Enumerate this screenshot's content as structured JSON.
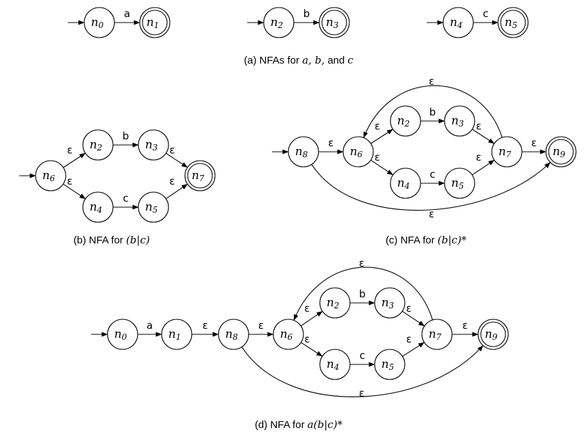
{
  "panels": [
    {
      "id": "a",
      "caption": [
        "(a) NFAs for ",
        {
          "i": "a, b,"
        },
        " and ",
        {
          "i": "c"
        }
      ]
    },
    {
      "id": "b",
      "caption": [
        "(b) NFA for ",
        {
          "i": "(b|c)"
        }
      ]
    },
    {
      "id": "c",
      "caption": [
        "(c) NFA for ",
        {
          "i": "(b|c)*"
        }
      ]
    },
    {
      "id": "d",
      "caption": [
        "(d) NFA for ",
        {
          "i": "a(b|c)*"
        }
      ]
    }
  ],
  "nodes": [
    {
      "key": "a0",
      "name": "n",
      "sub": "0",
      "accept": false
    },
    {
      "key": "a1",
      "name": "n",
      "sub": "1",
      "accept": true
    },
    {
      "key": "a2",
      "name": "n",
      "sub": "2",
      "accept": false
    },
    {
      "key": "a3",
      "name": "n",
      "sub": "3",
      "accept": true
    },
    {
      "key": "a4",
      "name": "n",
      "sub": "4",
      "accept": false
    },
    {
      "key": "a5",
      "name": "n",
      "sub": "5",
      "accept": true
    },
    {
      "key": "b6",
      "name": "n",
      "sub": "6",
      "accept": false
    },
    {
      "key": "b2",
      "name": "n",
      "sub": "2",
      "accept": false
    },
    {
      "key": "b3",
      "name": "n",
      "sub": "3",
      "accept": false
    },
    {
      "key": "b4",
      "name": "n",
      "sub": "4",
      "accept": false
    },
    {
      "key": "b5",
      "name": "n",
      "sub": "5",
      "accept": false
    },
    {
      "key": "b7",
      "name": "n",
      "sub": "7",
      "accept": true
    },
    {
      "key": "c8",
      "name": "n",
      "sub": "8",
      "accept": false
    },
    {
      "key": "c6",
      "name": "n",
      "sub": "6",
      "accept": false
    },
    {
      "key": "c2",
      "name": "n",
      "sub": "2",
      "accept": false
    },
    {
      "key": "c3",
      "name": "n",
      "sub": "3",
      "accept": false
    },
    {
      "key": "c4",
      "name": "n",
      "sub": "4",
      "accept": false
    },
    {
      "key": "c5",
      "name": "n",
      "sub": "5",
      "accept": false
    },
    {
      "key": "c7",
      "name": "n",
      "sub": "7",
      "accept": false
    },
    {
      "key": "c9",
      "name": "n",
      "sub": "9",
      "accept": true
    },
    {
      "key": "d0",
      "name": "n",
      "sub": "0",
      "accept": false
    },
    {
      "key": "d1",
      "name": "n",
      "sub": "1",
      "accept": false
    },
    {
      "key": "d8",
      "name": "n",
      "sub": "8",
      "accept": false
    },
    {
      "key": "d6",
      "name": "n",
      "sub": "6",
      "accept": false
    },
    {
      "key": "d2",
      "name": "n",
      "sub": "2",
      "accept": false
    },
    {
      "key": "d3",
      "name": "n",
      "sub": "3",
      "accept": false
    },
    {
      "key": "d4",
      "name": "n",
      "sub": "4",
      "accept": false
    },
    {
      "key": "d5",
      "name": "n",
      "sub": "5",
      "accept": false
    },
    {
      "key": "d7",
      "name": "n",
      "sub": "7",
      "accept": false
    },
    {
      "key": "d9",
      "name": "n",
      "sub": "9",
      "accept": true
    }
  ],
  "edges": [
    {
      "from": "a0",
      "to": "a1",
      "label": "a"
    },
    {
      "from": "a2",
      "to": "a3",
      "label": "b"
    },
    {
      "from": "a4",
      "to": "a5",
      "label": "c"
    },
    {
      "from": "b6",
      "to": "b2",
      "label": "ε"
    },
    {
      "from": "b6",
      "to": "b4",
      "label": "ε"
    },
    {
      "from": "b2",
      "to": "b3",
      "label": "b"
    },
    {
      "from": "b4",
      "to": "b5",
      "label": "c"
    },
    {
      "from": "b3",
      "to": "b7",
      "label": "ε"
    },
    {
      "from": "b5",
      "to": "b7",
      "label": "ε"
    },
    {
      "from": "c8",
      "to": "c6",
      "label": "ε"
    },
    {
      "from": "c6",
      "to": "c2",
      "label": "ε"
    },
    {
      "from": "c6",
      "to": "c4",
      "label": "ε"
    },
    {
      "from": "c2",
      "to": "c3",
      "label": "b"
    },
    {
      "from": "c4",
      "to": "c5",
      "label": "c"
    },
    {
      "from": "c3",
      "to": "c7",
      "label": "ε"
    },
    {
      "from": "c5",
      "to": "c7",
      "label": "ε"
    },
    {
      "from": "c7",
      "to": "c9",
      "label": "ε"
    },
    {
      "from": "c7",
      "to": "c6",
      "label": "ε"
    },
    {
      "from": "c8",
      "to": "c9",
      "label": "ε"
    },
    {
      "from": "d0",
      "to": "d1",
      "label": "a"
    },
    {
      "from": "d1",
      "to": "d8",
      "label": "ε"
    },
    {
      "from": "d8",
      "to": "d6",
      "label": "ε"
    },
    {
      "from": "d6",
      "to": "d2",
      "label": "ε"
    },
    {
      "from": "d6",
      "to": "d4",
      "label": "ε"
    },
    {
      "from": "d2",
      "to": "d3",
      "label": "b"
    },
    {
      "from": "d4",
      "to": "d5",
      "label": "c"
    },
    {
      "from": "d3",
      "to": "d7",
      "label": "ε"
    },
    {
      "from": "d5",
      "to": "d7",
      "label": "ε"
    },
    {
      "from": "d7",
      "to": "d9",
      "label": "ε"
    },
    {
      "from": "d7",
      "to": "d6",
      "label": "ε"
    },
    {
      "from": "d8",
      "to": "d9",
      "label": "ε"
    }
  ],
  "start_states": [
    "a0",
    "a2",
    "a4",
    "b6",
    "c8",
    "d0"
  ]
}
